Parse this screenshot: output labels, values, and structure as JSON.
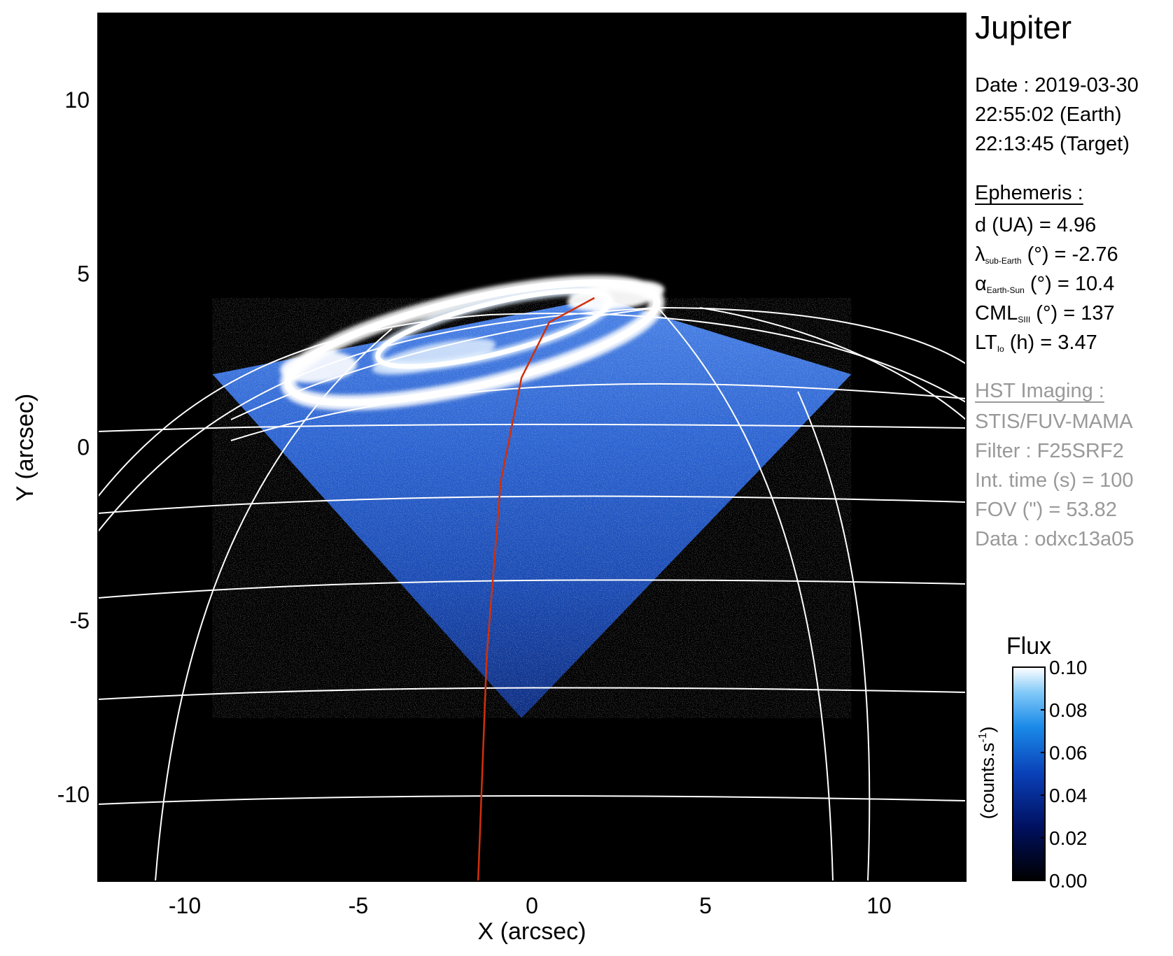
{
  "chart_data": {
    "type": "heatmap",
    "xlabel": "X (arcsec)",
    "ylabel": "Y (arcsec)",
    "xlim": [
      -12.5,
      12.5
    ],
    "ylim": [
      -12.5,
      12.5
    ],
    "xticks": [
      "-10",
      "-5",
      "0",
      "5",
      "10"
    ],
    "yticks": [
      "10",
      "5",
      "0",
      "-5",
      "-10"
    ],
    "colorbar": {
      "title": "Flux",
      "label": "(counts.s",
      "label_sup": "-1",
      "label_end": ")",
      "ticks": [
        "0.10",
        "0.08",
        "0.06",
        "0.04",
        "0.02",
        "0.00"
      ],
      "range": [
        0.0,
        0.1
      ]
    },
    "colors": {
      "background": "#000000",
      "grid": "#ffffff",
      "io_footprint": "#d0300c",
      "flux_low": "#000020",
      "flux_mid": "#1060d0",
      "flux_high": "#ffffff"
    },
    "coverage_region": [
      [
        -9.2,
        2.1
      ],
      [
        -0.3,
        -7.8
      ],
      [
        9.2,
        2.1
      ],
      [
        2.0,
        4.3
      ]
    ],
    "io_footprint_track": [
      [
        -1.55,
        -12.5
      ],
      [
        -1.3,
        -6.0
      ],
      [
        -0.9,
        -1.0
      ],
      [
        -0.3,
        2.0
      ],
      [
        0.5,
        3.6
      ],
      [
        1.8,
        4.3
      ]
    ]
  },
  "info": {
    "target": "Jupiter",
    "date_line": "Date : 2019-03-30",
    "earth_time": "22:55:02 (Earth)",
    "target_time": "22:13:45 (Target)",
    "ephemeris_header": "Ephemeris :",
    "d_line": "d (UA)    = 4.96",
    "lambda_symbol": "λ",
    "lambda_sub": "sub-Earth",
    "lambda_rest": " (°) = -2.76",
    "alpha_symbol": "α",
    "alpha_sub": "Earth-Sun",
    "alpha_rest": " (°) = 10.4",
    "cml_symbol": "CML",
    "cml_sub": "SIII",
    "cml_rest": " (°) = 137",
    "lt_symbol": "LT",
    "lt_sub": "Io",
    "lt_rest": " (h) = 3.47",
    "hst_header": "HST Imaging :",
    "instrument": "STIS/FUV-MAMA",
    "filter": "Filter : F25SRF2",
    "int_time": "Int. time (s) = 100",
    "fov": "FOV (\") = 53.82",
    "data_id": "Data : odxc13a05"
  }
}
